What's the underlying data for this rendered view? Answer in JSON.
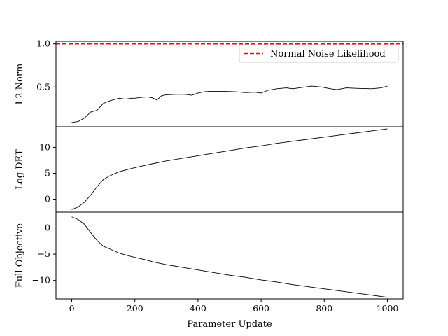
{
  "chart_data": {
    "type": "line",
    "xlabel": "Parameter Update",
    "xlim": [
      -50,
      1050
    ],
    "x_ticks": [
      "0",
      "200",
      "400",
      "600",
      "800",
      "1000"
    ],
    "x_tick_values": [
      0,
      200,
      400,
      600,
      800,
      1000
    ],
    "grid": false,
    "panels": [
      {
        "ylabel": "L2 Norm",
        "ylim": [
          0.04,
          1.03
        ],
        "y_ticks": [
          "0.5",
          "1.0"
        ],
        "y_tick_values": [
          0.5,
          1.0
        ],
        "reference_line": {
          "value": 1.0,
          "label": "Normal Noise Likelihood",
          "color": "#ff0000",
          "style": "dashed"
        },
        "legend": {
          "placement": "top-right",
          "entries": [
            "Normal Noise Likelihood"
          ]
        },
        "series": [
          {
            "color": "#000000",
            "x": [
              0,
              20,
              40,
              60,
              80,
              90,
              100,
              120,
              150,
              170,
              190,
              200,
              220,
              240,
              255,
              270,
              285,
              300,
              330,
              360,
              380,
              400,
              420,
              440,
              480,
              520,
              550,
              580,
              600,
              620,
              650,
              680,
              700,
              720,
              760,
              790,
              820,
              840,
              870,
              900,
              950,
              980,
              1000
            ],
            "y": [
              0.09,
              0.1,
              0.14,
              0.21,
              0.23,
              0.27,
              0.31,
              0.34,
              0.37,
              0.36,
              0.37,
              0.37,
              0.38,
              0.385,
              0.375,
              0.35,
              0.4,
              0.41,
              0.415,
              0.415,
              0.405,
              0.43,
              0.445,
              0.45,
              0.45,
              0.445,
              0.435,
              0.44,
              0.43,
              0.46,
              0.48,
              0.49,
              0.48,
              0.49,
              0.51,
              0.5,
              0.48,
              0.47,
              0.49,
              0.485,
              0.48,
              0.49,
              0.51
            ]
          }
        ]
      },
      {
        "ylabel": "Log DET",
        "ylim": [
          -2.5,
          14
        ],
        "y_ticks": [
          "0",
          "5",
          "10"
        ],
        "y_tick_values": [
          0,
          5,
          10
        ],
        "series": [
          {
            "color": "#000000",
            "x": [
              0,
              20,
              40,
              60,
              80,
              100,
              120,
              150,
              180,
              200,
              230,
              260,
              300,
              350,
              400,
              450,
              500,
              550,
              600,
              650,
              700,
              750,
              800,
              850,
              900,
              950,
              1000
            ],
            "y": [
              -2.0,
              -1.5,
              -0.6,
              0.8,
              2.4,
              3.8,
              4.5,
              5.3,
              5.8,
              6.1,
              6.5,
              6.9,
              7.4,
              7.9,
              8.4,
              8.9,
              9.4,
              9.9,
              10.3,
              10.8,
              11.2,
              11.6,
              12.0,
              12.4,
              12.8,
              13.2,
              13.6
            ]
          }
        ]
      },
      {
        "ylabel": "Full Objective",
        "ylim": [
          -13.5,
          3.0
        ],
        "y_ticks": [
          "−10",
          "−5",
          "0"
        ],
        "y_tick_values": [
          -10,
          -5,
          0
        ],
        "series": [
          {
            "color": "#000000",
            "x": [
              0,
              20,
              40,
              60,
              80,
              100,
              120,
              150,
              180,
              200,
              230,
              260,
              300,
              350,
              400,
              450,
              500,
              550,
              600,
              650,
              700,
              750,
              800,
              850,
              900,
              950,
              1000
            ],
            "y": [
              2.1,
              1.6,
              0.7,
              -0.9,
              -2.4,
              -3.5,
              -4.0,
              -4.8,
              -5.3,
              -5.6,
              -6.0,
              -6.5,
              -7.0,
              -7.5,
              -8.0,
              -8.5,
              -9.0,
              -9.4,
              -9.9,
              -10.3,
              -10.8,
              -11.2,
              -11.6,
              -12.0,
              -12.4,
              -12.8,
              -13.2
            ]
          }
        ]
      }
    ]
  }
}
